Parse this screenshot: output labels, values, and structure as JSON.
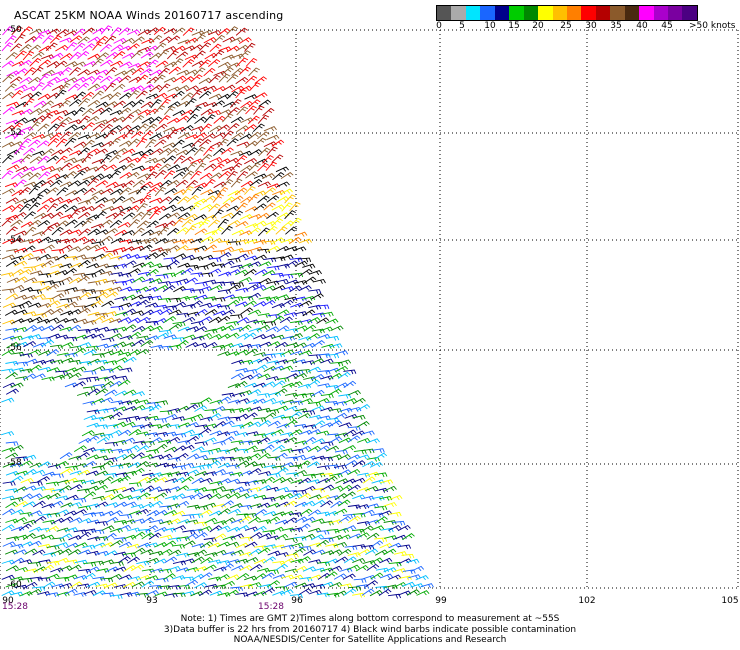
{
  "title": "ASCAT 25KM NOAA Winds 20160717 ascending",
  "legend": {
    "colors": [
      "#555555",
      "#aaaaaa",
      "#00e5ff",
      "#1a66ff",
      "#00008b",
      "#00cc00",
      "#008800",
      "#ffff00",
      "#ffc000",
      "#ff7f00",
      "#ff0000",
      "#b40000",
      "#8b5a2b",
      "#4a2a10",
      "#ff00ff",
      "#aa00cc",
      "#7a00a0",
      "#4b0082"
    ],
    "labels": [
      "0",
      "5",
      "10",
      "15",
      "20",
      "25",
      "30",
      "35",
      "40",
      "45"
    ],
    "unit": ">50 knots"
  },
  "map": {
    "lat_labels": [
      "-50",
      "-52",
      "-54",
      "-56",
      "-58",
      "-60"
    ],
    "lon_labels": [
      "90",
      "93",
      "96",
      "99",
      "102",
      "105"
    ],
    "times": [
      "15:28",
      "15:28"
    ],
    "barb_colors": {
      "high_north": [
        "#ff00ff",
        "#8b5a2b",
        "#ff0000",
        "#b40000",
        "#000000"
      ],
      "transition": [
        "#ffc000",
        "#ff7f00",
        "#ffff00",
        "#000000"
      ],
      "mid": [
        "#1a1aff",
        "#00008b",
        "#00aa00",
        "#000000"
      ],
      "south": [
        "#00bfff",
        "#1a66ff",
        "#00aa00",
        "#008800",
        "#00008b",
        "#ffff00"
      ]
    }
  },
  "notes": [
    "Note: 1) Times are GMT 2)Times along bottom correspond to measurement at ~55S",
    "3)Data buffer is 22 hrs from 20160717 4) Black wind barbs indicate possible contamination",
    "NOAA/NESDIS/Center for Satellite Applications and Research"
  ]
}
